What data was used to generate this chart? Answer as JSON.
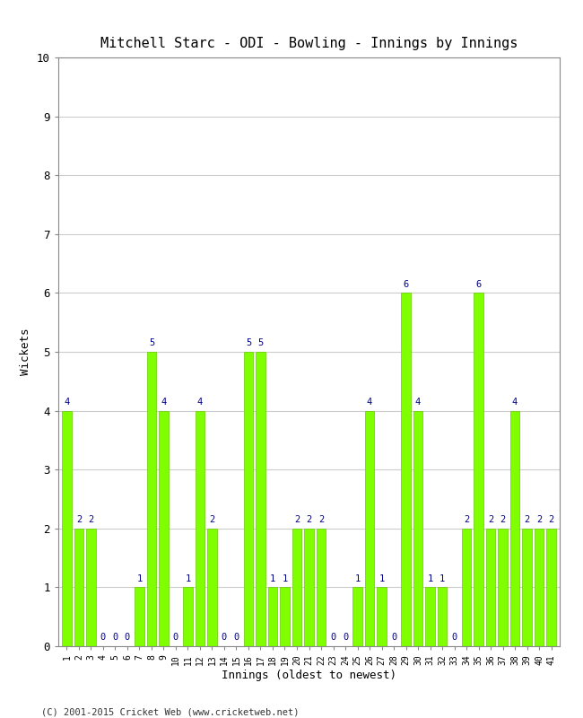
{
  "title": "Mitchell Starc - ODI - Bowling - Innings by Innings",
  "xlabel": "Innings (oldest to newest)",
  "ylabel": "Wickets",
  "bar_color": "#7FFF00",
  "bar_edge_color": "#66CC00",
  "label_color": "#00008B",
  "background_color": "#ffffff",
  "grid_color": "#cccccc",
  "ylim": [
    0,
    10
  ],
  "yticks": [
    0,
    1,
    2,
    3,
    4,
    5,
    6,
    7,
    8,
    9,
    10
  ],
  "copyright": "(C) 2001-2015 Cricket Web (www.cricketweb.net)",
  "innings": [
    1,
    2,
    3,
    4,
    5,
    6,
    7,
    8,
    9,
    10,
    11,
    12,
    13,
    14,
    15,
    16,
    17,
    18,
    19,
    20,
    21,
    22,
    23,
    24,
    25,
    26,
    27,
    28,
    29,
    30,
    31,
    32,
    33,
    34,
    35,
    36,
    37,
    38,
    39,
    40,
    41
  ],
  "wickets": [
    4,
    2,
    2,
    0,
    0,
    0,
    1,
    5,
    4,
    0,
    1,
    4,
    2,
    0,
    0,
    5,
    5,
    1,
    1,
    2,
    2,
    2,
    0,
    0,
    1,
    4,
    1,
    0,
    6,
    4,
    1,
    1,
    0,
    2,
    6,
    2,
    2,
    4,
    2,
    2,
    2
  ]
}
